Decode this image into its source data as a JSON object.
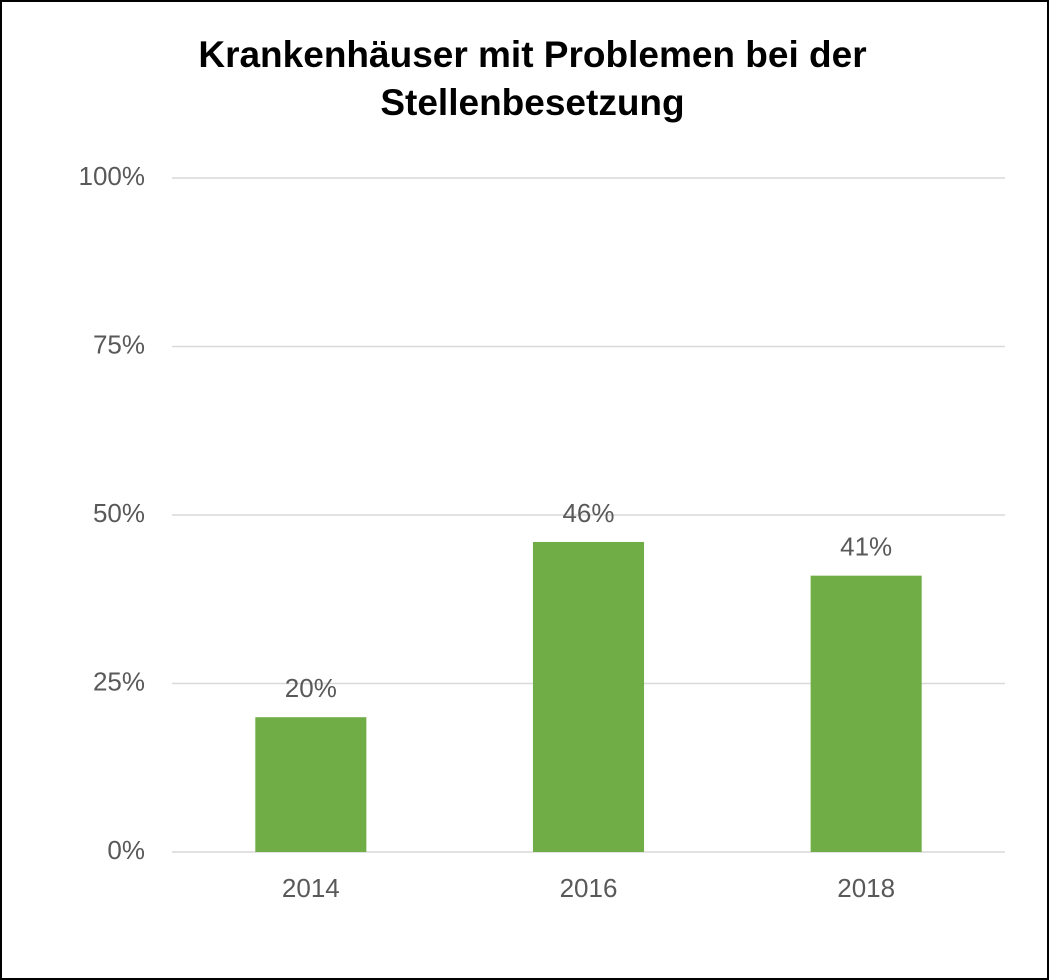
{
  "chart_data": {
    "type": "bar",
    "title": "Krankenhäuser mit Problemen bei der Stellenbesetzung",
    "categories": [
      "2014",
      "2016",
      "2018"
    ],
    "values": [
      20,
      46,
      41
    ],
    "value_labels": [
      "20%",
      "46%",
      "41%"
    ],
    "color": "#70ad47",
    "ylim": [
      0,
      100
    ],
    "yticks": [
      {
        "value": 0,
        "label": "0%"
      },
      {
        "value": 25,
        "label": "25%"
      },
      {
        "value": 50,
        "label": "50%"
      },
      {
        "value": 75,
        "label": "75%"
      },
      {
        "value": 100,
        "label": "100%"
      }
    ],
    "grid": true
  }
}
